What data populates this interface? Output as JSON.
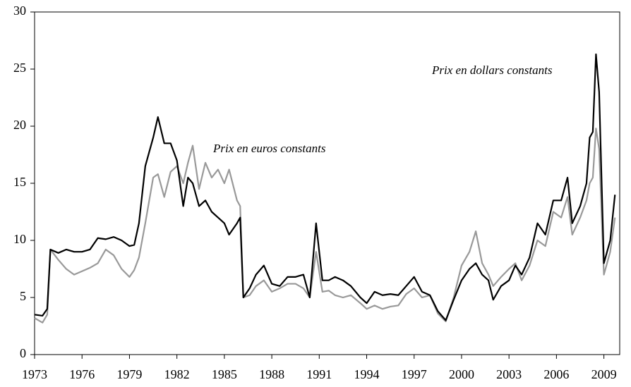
{
  "chart_data": {
    "type": "line",
    "x": [
      1973.0,
      1973.5,
      1973.8,
      1974.0,
      1974.5,
      1975.0,
      1975.5,
      1976.0,
      1976.5,
      1977.0,
      1977.5,
      1978.0,
      1978.5,
      1979.0,
      1979.3,
      1979.6,
      1980.0,
      1980.5,
      1980.8,
      1981.2,
      1981.6,
      1982.0,
      1982.4,
      1982.7,
      1983.0,
      1983.4,
      1983.8,
      1984.2,
      1984.6,
      1985.0,
      1985.3,
      1985.8,
      1986.0,
      1986.2,
      1986.6,
      1987.0,
      1987.5,
      1988.0,
      1988.5,
      1989.0,
      1989.5,
      1990.0,
      1990.4,
      1990.8,
      1991.2,
      1991.6,
      1992.0,
      1992.5,
      1993.0,
      1993.6,
      1994.0,
      1994.5,
      1995.0,
      1995.5,
      1996.0,
      1996.5,
      1997.0,
      1997.5,
      1998.0,
      1998.5,
      1999.0,
      1999.5,
      2000.0,
      2000.5,
      2000.9,
      2001.3,
      2001.7,
      2002.0,
      2002.5,
      2003.0,
      2003.4,
      2003.8,
      2004.3,
      2004.8,
      2005.3,
      2005.8,
      2006.3,
      2006.7,
      2007.0,
      2007.5,
      2007.9,
      2008.1,
      2008.3,
      2008.5,
      2008.7,
      2009.0,
      2009.4,
      2009.7
    ],
    "series": [
      {
        "name": "Prix en dollars constants",
        "color": "#000000",
        "values": [
          3.5,
          3.4,
          4.0,
          9.2,
          8.9,
          9.2,
          9.0,
          9.0,
          9.2,
          10.2,
          10.1,
          10.3,
          10.0,
          9.5,
          9.6,
          11.5,
          16.5,
          19.0,
          20.8,
          18.5,
          18.5,
          17.0,
          13.0,
          15.5,
          15.0,
          13.0,
          13.5,
          12.5,
          12.0,
          11.5,
          10.5,
          11.5,
          12.0,
          5.0,
          5.8,
          7.0,
          7.8,
          6.2,
          6.0,
          6.8,
          6.8,
          7.0,
          5.0,
          11.5,
          6.5,
          6.5,
          6.8,
          6.5,
          6.0,
          5.0,
          4.5,
          5.5,
          5.2,
          5.3,
          5.2,
          6.0,
          6.8,
          5.5,
          5.2,
          3.8,
          3.0,
          4.8,
          6.5,
          7.5,
          8.0,
          7.0,
          6.5,
          4.8,
          6.0,
          6.5,
          7.8,
          7.0,
          8.5,
          11.5,
          10.5,
          13.5,
          13.5,
          15.5,
          11.5,
          13.0,
          15.0,
          19.0,
          19.5,
          26.3,
          23.0,
          8.0,
          10.0,
          14.0
        ]
      },
      {
        "name": "Prix en euros constants",
        "color": "#999999",
        "values": [
          3.2,
          2.8,
          3.5,
          9.2,
          8.3,
          7.5,
          7.0,
          7.3,
          7.6,
          8.0,
          9.2,
          8.7,
          7.5,
          6.8,
          7.4,
          8.5,
          11.5,
          15.5,
          15.8,
          13.8,
          16.0,
          16.5,
          15.0,
          16.8,
          18.3,
          14.5,
          16.8,
          15.5,
          16.2,
          15.0,
          16.2,
          13.5,
          13.0,
          5.0,
          5.2,
          6.0,
          6.5,
          5.5,
          5.8,
          6.2,
          6.2,
          5.8,
          5.0,
          9.0,
          5.5,
          5.6,
          5.2,
          5.0,
          5.2,
          4.5,
          4.0,
          4.3,
          4.0,
          4.2,
          4.3,
          5.3,
          5.8,
          5.0,
          5.2,
          3.6,
          2.9,
          5.0,
          7.8,
          9.0,
          10.8,
          8.0,
          7.0,
          6.0,
          6.8,
          7.5,
          8.0,
          6.5,
          7.8,
          10.0,
          9.5,
          12.5,
          12.0,
          13.8,
          10.5,
          12.0,
          13.5,
          15.0,
          15.5,
          19.8,
          18.0,
          7.0,
          9.0,
          12.0
        ]
      }
    ],
    "xlim": [
      1973,
      2010
    ],
    "xticks": [
      1973,
      1976,
      1979,
      1982,
      1985,
      1988,
      1991,
      1994,
      1997,
      2000,
      2003,
      2006,
      2009
    ],
    "ylim": [
      0,
      30
    ],
    "yticks": [
      0,
      5,
      10,
      15,
      20,
      25,
      30
    ],
    "grid": false
  }
}
